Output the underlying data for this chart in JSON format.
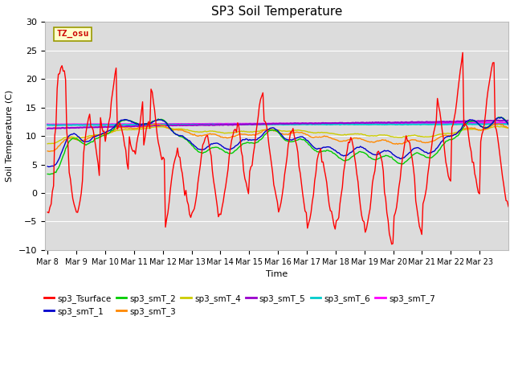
{
  "title": "SP3 Soil Temperature",
  "ylabel": "Soil Temperature (C)",
  "xlabel": "Time",
  "ylim": [
    -10,
    30
  ],
  "tz_label": "TZ_osu",
  "x_tick_labels": [
    "Mar 8",
    "Mar 9",
    "Mar 10",
    "Mar 11",
    "Mar 12",
    "Mar 13",
    "Mar 14",
    "Mar 15",
    "Mar 16",
    "Mar 17",
    "Mar 18",
    "Mar 19",
    "Mar 20",
    "Mar 21",
    "Mar 22",
    "Mar 23"
  ],
  "series_colors": {
    "sp3_Tsurface": "#ff0000",
    "sp3_smT_1": "#0000cc",
    "sp3_smT_2": "#00cc00",
    "sp3_smT_3": "#ff8800",
    "sp3_smT_4": "#cccc00",
    "sp3_smT_5": "#9900cc",
    "sp3_smT_6": "#00cccc",
    "sp3_smT_7": "#ff00ff"
  },
  "bg_color": "#dcdcdc",
  "fig_color": "#ffffff"
}
